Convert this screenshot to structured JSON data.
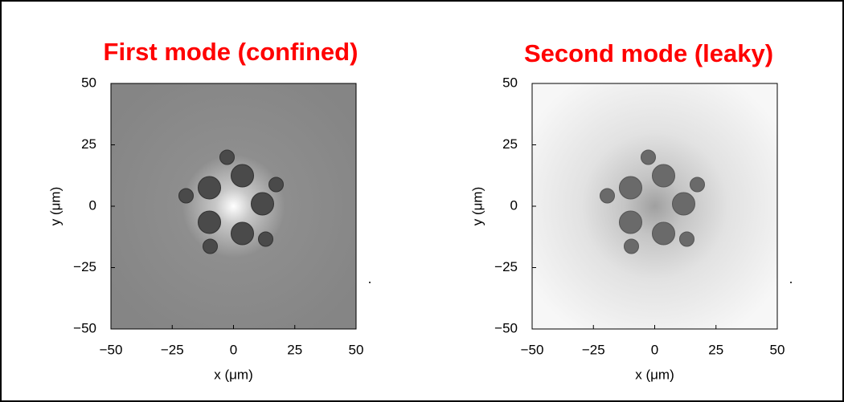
{
  "chart_data": [
    {
      "type": "image",
      "title": "First mode (confined)",
      "x_label": "x (μm)",
      "y_label": "y (μm)",
      "xlim": [
        -50,
        50
      ],
      "ylim": [
        -50,
        50
      ],
      "xticks": [
        {
          "value": -50,
          "label": "−50"
        },
        {
          "value": -25,
          "label": "−25"
        },
        0,
        25,
        50
      ],
      "yticks": [
        {
          "value": -50,
          "label": "−50"
        },
        {
          "value": -25,
          "label": "−25"
        },
        0,
        25,
        50
      ],
      "title_color": "#ff0000"
    },
    {
      "type": "image",
      "title": "Second mode (leaky)",
      "x_label": "x (μm)",
      "y_label": "y (μm)",
      "xlim": [
        -50,
        50
      ],
      "ylim": [
        -50,
        50
      ],
      "xticks": [
        {
          "value": -50,
          "label": "−50"
        },
        {
          "value": -25,
          "label": "−25"
        },
        0,
        25,
        50
      ],
      "yticks": [
        {
          "value": -50,
          "label": "−50"
        },
        {
          "value": -25,
          "label": "−25"
        },
        0,
        25,
        50
      ],
      "title_color": "#ff0000"
    }
  ]
}
